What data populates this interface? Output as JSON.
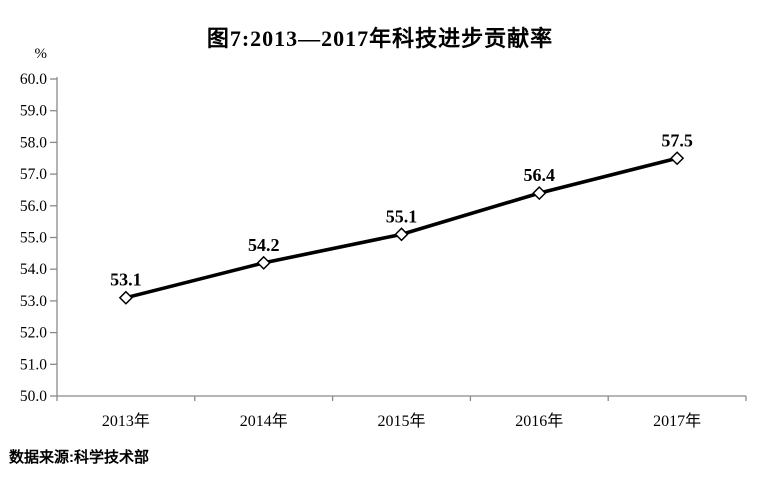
{
  "title": "图7:2013—2017年科技进步贡献率",
  "source": "数据来源:科学技术部",
  "chart_data": {
    "type": "line",
    "title": "图7:2013—2017年科技进步贡献率",
    "categories": [
      "2013年",
      "2014年",
      "2015年",
      "2016年",
      "2017年"
    ],
    "series": [
      {
        "name": "科技进步贡献率",
        "values": [
          53.1,
          54.2,
          55.1,
          56.4,
          57.5
        ]
      }
    ],
    "data_labels": [
      "53.1",
      "54.2",
      "55.1",
      "56.4",
      "57.5"
    ],
    "xlabel": "",
    "ylabel": "%",
    "ylim": [
      50.0,
      60.0
    ],
    "ytick_step": 1.0,
    "ytick_decimals": 1,
    "grid": false,
    "legend": "none",
    "marker": "open-diamond",
    "line_color": "#000000",
    "marker_fill": "#ffffff",
    "axis_color": "#8a8a8a",
    "text_color": "#000000",
    "background_color": "#ffffff"
  }
}
